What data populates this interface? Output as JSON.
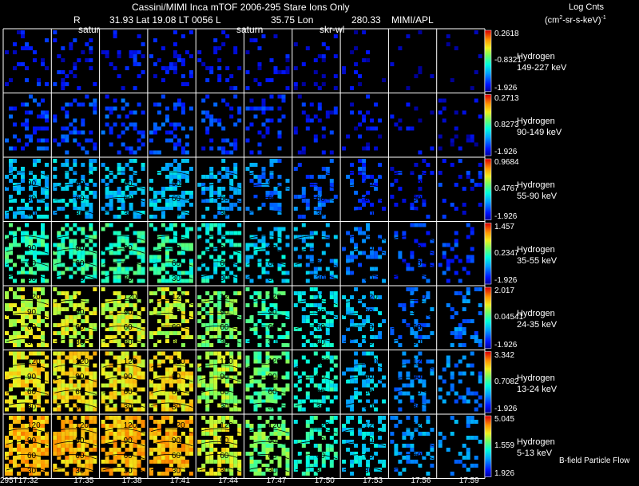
{
  "header": {
    "title": "Cassini/MIMI Inca mTOF  2006-295   Stare   Ions Only",
    "r_label": "R",
    "lat_text": "31.93 Lat 19.08 LT 0056 L",
    "lon_text": "35.75 Lon",
    "l_value": "280.33",
    "credit": "MIMI/APL",
    "saturn_label_1": "satur",
    "saturn_label_2": "saturn",
    "skr_label": "skr-wl",
    "units_title": "Log Cnts",
    "units_line_prefix": "(cm",
    "units_sup": "2",
    "units_line_suffix": "-sr-s-keV)",
    "units_sup2": "-1"
  },
  "rows": [
    {
      "species": "Hydrogen",
      "range": "149-227 keV",
      "max": "0.2618",
      "mid": "-0.8321",
      "min": "-1.926",
      "level": 0.1,
      "density": 0.22
    },
    {
      "species": "Hydrogen",
      "range": "90-149 keV",
      "max": "0.2713",
      "mid": "0.8273",
      "min": "-1.926",
      "level": 0.17,
      "density": 0.35
    },
    {
      "species": "Hydrogen",
      "range": "55-90 keV",
      "max": "0.9684",
      "mid": "0.4767",
      "min": "-1.926",
      "level": 0.35,
      "density": 0.55
    },
    {
      "species": "Hydrogen",
      "range": "35-55 keV",
      "max": "1.457",
      "mid": "0.2347",
      "min": "-1.926",
      "level": 0.5,
      "density": 0.62
    },
    {
      "species": "Hydrogen",
      "range": "24-35 keV",
      "max": "2.017",
      "mid": "0.04541",
      "min": "-1.926",
      "level": 0.68,
      "density": 0.72
    },
    {
      "species": "Hydrogen",
      "range": "13-24 keV",
      "max": "3.342",
      "mid": "0.7082",
      "min": "-1.926",
      "level": 0.74,
      "density": 0.85
    },
    {
      "species": "Hydrogen",
      "range": "5-13 keV",
      "max": "5.045",
      "mid": "1.559",
      "min": "1.926",
      "level": 0.8,
      "density": 0.92
    }
  ],
  "angle_labels": [
    "120",
    "90",
    "60",
    "30"
  ],
  "times": [
    "295T17:32",
    "17:35",
    "17:38",
    "17:41",
    "17:44",
    "17:47",
    "17:50",
    "17:53",
    "17:56",
    "17:59"
  ],
  "footer_note": "B-field Particle Flow"
}
